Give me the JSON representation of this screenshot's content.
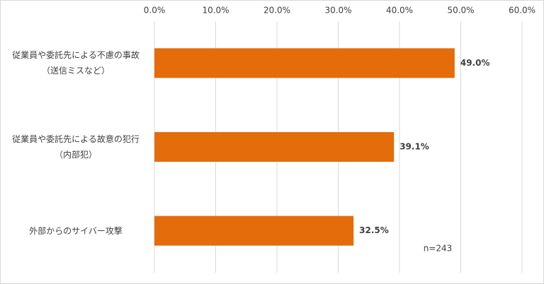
{
  "chart_data": {
    "type": "bar",
    "orientation": "horizontal",
    "categories": [
      "従業員や委託先による不慮の事故\n（送信ミスなど）",
      "従業員や委託先による故意の犯行\n（内部犯）",
      "外部からのサイバー攻撃"
    ],
    "values": [
      49.0,
      39.1,
      32.5
    ],
    "value_labels": [
      "49.0%",
      "39.1%",
      "32.5%"
    ],
    "color": "#e46c0a",
    "xlim": [
      0,
      60
    ],
    "xticks": [
      {
        "value": 0,
        "label": "0.0%"
      },
      {
        "value": 10,
        "label": "10.0%"
      },
      {
        "value": 20,
        "label": "20.0%"
      },
      {
        "value": 30,
        "label": "30.0%"
      },
      {
        "value": 40,
        "label": "40.0%"
      },
      {
        "value": 50,
        "label": "50.0%"
      },
      {
        "value": 60,
        "label": "60.0%"
      }
    ],
    "grid": true,
    "annotation": "n=243"
  }
}
